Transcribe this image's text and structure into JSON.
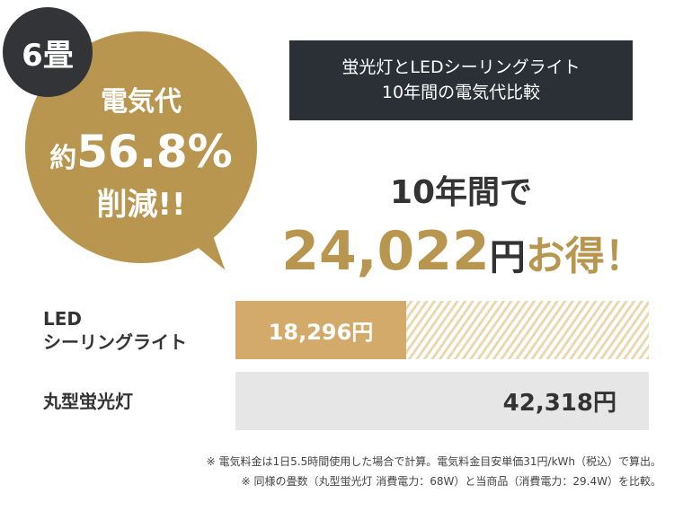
{
  "badge": "6畳",
  "bubble": {
    "line1": "電気代",
    "prefix": "約",
    "percent": "56.8%",
    "line3": "削減!!"
  },
  "title": {
    "line1": "蛍光灯とLEDシーリングライト",
    "line2": "10年間の電気代比較"
  },
  "headline": {
    "line1": "10年間で",
    "amount": "24,022",
    "yen": "円",
    "suffix": "お得！"
  },
  "bars": [
    {
      "label1": "LED",
      "label2": "シーリングライト",
      "value": 18296,
      "value_text": "18,296円",
      "color": "#d4aa6a"
    },
    {
      "label1": "丸型蛍光灯",
      "value": 42318,
      "value_text": "42,318円",
      "color": "#e6e6e6"
    }
  ],
  "notes": [
    "※ 電気料金は1日5.5時間使用した場合で計算。電気料金目安単価31円/kWh（税込）で算出。",
    "※ 同様の畳数（丸型蛍光灯 消費電力：68W）と当商品（消費電力：29.4W）を比較。"
  ],
  "colors": {
    "gold": "#b8964f",
    "dark": "#2b3036"
  }
}
